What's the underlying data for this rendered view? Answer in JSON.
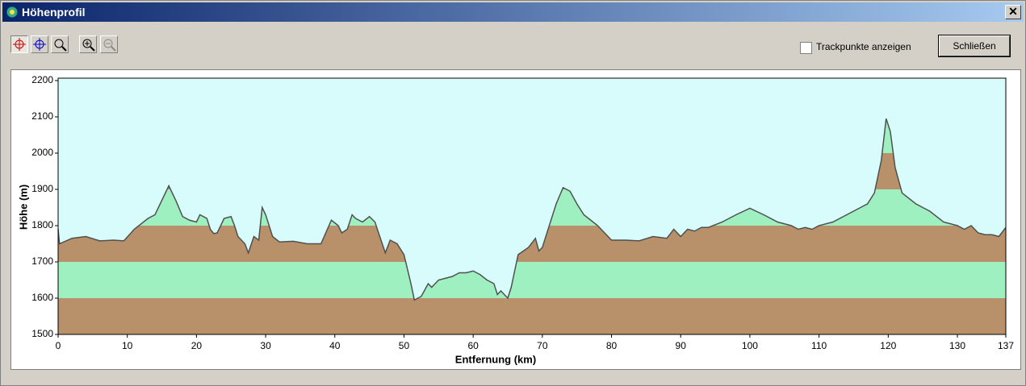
{
  "window": {
    "title": "Höhenprofil",
    "checkbox_label": "Trackpunkte anzeigen",
    "close_button": "Schließen"
  },
  "chart_data": {
    "type": "area",
    "xlabel": "Entfernung   (km)",
    "ylabel": "Höhe (m)",
    "x": [
      0,
      0.2,
      2,
      4,
      6,
      8,
      9.5,
      11,
      13,
      14,
      16,
      17,
      18,
      19,
      20,
      20.5,
      21.5,
      22,
      22.5,
      23,
      24,
      25,
      25.5,
      26,
      27,
      27.5,
      28.3,
      29,
      29.5,
      30,
      30.5,
      31,
      32,
      34,
      36,
      38,
      39.5,
      40.5,
      41,
      41.8,
      42.5,
      43,
      44,
      45,
      45.8,
      46.5,
      47.3,
      48,
      49,
      50,
      51,
      51.5,
      52.5,
      53.5,
      54,
      55,
      57,
      58,
      59,
      60,
      61,
      62,
      63,
      63.5,
      64,
      65,
      65.5,
      66.5,
      68,
      69,
      69.5,
      70,
      71,
      72,
      73,
      74,
      75,
      76,
      77,
      78,
      79,
      80,
      82,
      84,
      86,
      88,
      89,
      90,
      91,
      92,
      93,
      94,
      96,
      98,
      100,
      102,
      104,
      106,
      107,
      108,
      109,
      110,
      112,
      114,
      116,
      117,
      118,
      119,
      119.7,
      120.3,
      121,
      122,
      124,
      126,
      128,
      130,
      131,
      132,
      133,
      134,
      135,
      136,
      137
    ],
    "values": [
      1790,
      1750,
      1765,
      1770,
      1758,
      1760,
      1758,
      1790,
      1820,
      1830,
      1910,
      1870,
      1825,
      1815,
      1810,
      1830,
      1820,
      1790,
      1778,
      1780,
      1820,
      1825,
      1800,
      1770,
      1750,
      1725,
      1770,
      1760,
      1850,
      1830,
      1800,
      1770,
      1755,
      1757,
      1750,
      1750,
      1815,
      1800,
      1780,
      1790,
      1830,
      1820,
      1810,
      1825,
      1810,
      1770,
      1725,
      1760,
      1750,
      1720,
      1640,
      1595,
      1605,
      1640,
      1630,
      1650,
      1660,
      1670,
      1670,
      1675,
      1665,
      1650,
      1640,
      1610,
      1620,
      1600,
      1630,
      1720,
      1740,
      1765,
      1730,
      1740,
      1800,
      1860,
      1905,
      1895,
      1860,
      1830,
      1815,
      1800,
      1780,
      1760,
      1760,
      1758,
      1770,
      1765,
      1790,
      1770,
      1790,
      1785,
      1795,
      1795,
      1810,
      1830,
      1848,
      1830,
      1810,
      1800,
      1790,
      1795,
      1790,
      1800,
      1810,
      1830,
      1850,
      1860,
      1890,
      1980,
      2095,
      2060,
      1960,
      1890,
      1860,
      1840,
      1810,
      1800,
      1790,
      1800,
      1780,
      1775,
      1775,
      1770,
      1795
    ],
    "xlim": [
      0,
      137
    ],
    "ylim": [
      1500,
      2200
    ],
    "xticks": [
      0,
      10,
      20,
      30,
      40,
      50,
      60,
      70,
      80,
      90,
      100,
      110,
      120,
      130,
      137
    ],
    "yticks": [
      1500,
      1600,
      1700,
      1800,
      1900,
      2000,
      2100,
      2200
    ],
    "band_colors": [
      "#b8916a",
      "#9ef0c0"
    ],
    "background": "#d8fcfc",
    "color": "#505050"
  }
}
